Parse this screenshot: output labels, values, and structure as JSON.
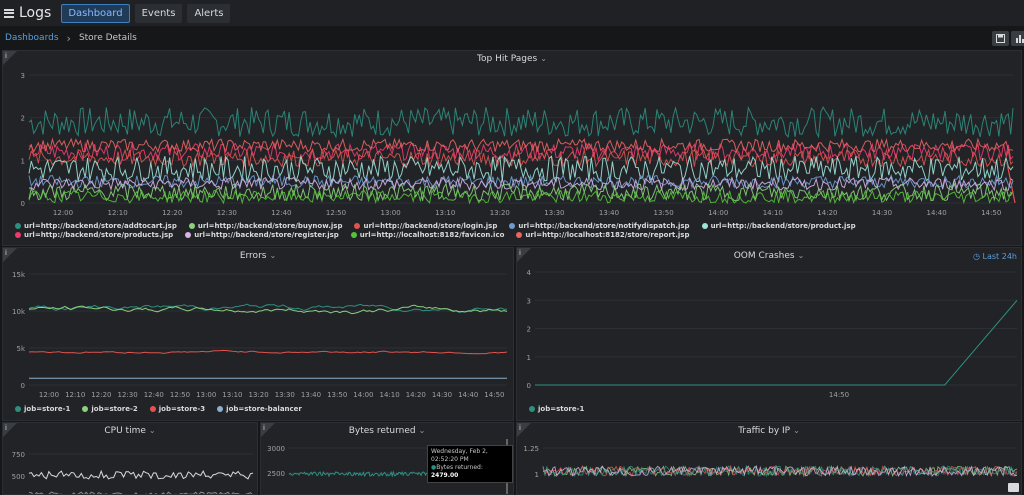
{
  "app": {
    "title": "Logs",
    "nav": [
      {
        "label": "Dashboard",
        "active": true
      },
      {
        "label": "Events",
        "active": false
      },
      {
        "label": "Alerts",
        "active": false
      }
    ]
  },
  "breadcrumb": {
    "root": "Dashboards",
    "current": "Store Details"
  },
  "icons": {
    "menu": "hamburger-icon",
    "save": "floppy-disk-icon",
    "chart": "bar-chart-icon",
    "panel_info": "info-icon",
    "clock": "clock-icon"
  },
  "colors": {
    "teal": "#2e8f80",
    "green": "#8cd17d",
    "red": "#e0534e",
    "blue": "#6e9cd1",
    "light_teal": "#9ee3d8",
    "pink": "#f03a6e",
    "lavender": "#d6b3e6",
    "lime": "#56c23a",
    "salmon": "#ea6460",
    "store_balancer": "#8ab0cf"
  },
  "panels": {
    "top_hit": {
      "title": "Top Hit Pages",
      "chart_data": {
        "type": "line",
        "x_ticks": [
          "12:00",
          "12:10",
          "12:20",
          "12:30",
          "12:40",
          "12:50",
          "13:00",
          "13:10",
          "13:20",
          "13:30",
          "13:40",
          "13:50",
          "14:00",
          "14:10",
          "14:20",
          "14:30",
          "14:40",
          "14:50"
        ],
        "y_ticks": [
          "0",
          "1",
          "2",
          "3"
        ],
        "ylim": [
          0,
          3
        ],
        "series": [
          {
            "name": "url=http://backend/store/addtocart.jsp",
            "color": "#2e8f80",
            "mean": 1.9,
            "amp": 0.35
          },
          {
            "name": "url=http://backend/store/buynow.jsp",
            "color": "#8cd17d",
            "mean": 0.25,
            "amp": 0.2
          },
          {
            "name": "url=http://backend/store/login.jsp",
            "color": "#e0534e",
            "mean": 1.05,
            "amp": 0.2
          },
          {
            "name": "url=http://backend/store/notifydispatch.jsp",
            "color": "#6e9cd1",
            "mean": 0.5,
            "amp": 0.15
          },
          {
            "name": "url=http://backend/store/product.jsp",
            "color": "#9ee3d8",
            "mean": 0.8,
            "amp": 0.3
          },
          {
            "name": "url=http://backend/store/products.jsp",
            "color": "#f03a6e",
            "mean": 1.2,
            "amp": 0.2
          },
          {
            "name": "url=http://backend/store/register.jsp",
            "color": "#d6b3e6",
            "mean": 0.45,
            "amp": 0.15
          },
          {
            "name": "url=http://localhost:8182/favicon.ico",
            "color": "#56c23a",
            "mean": 0.15,
            "amp": 0.15
          },
          {
            "name": "url=http://localhost:8182/store/report.jsp",
            "color": "#ea6460",
            "mean": 1.35,
            "amp": 0.15
          }
        ]
      }
    },
    "errors": {
      "title": "Errors",
      "chart_data": {
        "type": "line",
        "x_ticks": [
          "12:00",
          "12:10",
          "12:20",
          "12:30",
          "12:40",
          "12:50",
          "13:00",
          "13:10",
          "13:20",
          "13:30",
          "13:40",
          "13:50",
          "14:00",
          "14:10",
          "14:20",
          "14:30",
          "14:40",
          "14:50"
        ],
        "y_ticks": [
          "0",
          "5k",
          "10k",
          "15k"
        ],
        "ylim": [
          0,
          15000
        ],
        "series": [
          {
            "name": "job=store-1",
            "color": "#2e8f80",
            "mean": 10500,
            "amp": 1200
          },
          {
            "name": "job=store-2",
            "color": "#8cd17d",
            "mean": 10200,
            "amp": 1200
          },
          {
            "name": "job=store-3",
            "color": "#e0534e",
            "mean": 4500,
            "amp": 500
          },
          {
            "name": "job=store-balancer",
            "color": "#8ab0cf",
            "mean": 900,
            "amp": 0
          }
        ]
      }
    },
    "oom": {
      "title": "OOM Crashes",
      "time_range": "Last 24h",
      "chart_data": {
        "type": "line",
        "x_ticks": [
          "14:50"
        ],
        "y_ticks": [
          "0",
          "1",
          "2",
          "3",
          "4"
        ],
        "ylim": [
          0,
          4
        ],
        "series": [
          {
            "name": "job=store-1",
            "color": "#2e8f80",
            "points": [
              [
                0,
                0
              ],
              [
                0.85,
                0
              ],
              [
                1.0,
                3
              ]
            ]
          }
        ]
      }
    },
    "cpu": {
      "title": "CPU time",
      "chart_data": {
        "type": "line",
        "y_ticks": [
          "500",
          "750"
        ],
        "series": [
          {
            "name": "",
            "color": "#d8d9da"
          }
        ]
      }
    },
    "bytes": {
      "title": "Bytes returned",
      "tooltip": {
        "time": "Wednesday, Feb 2, 02:52:20 PM",
        "label": "Bytes returned:",
        "value": "2479.00"
      },
      "chart_data": {
        "type": "line",
        "y_ticks": [
          "2500",
          "3000"
        ],
        "series": [
          {
            "name": "",
            "color": "#2e8f80"
          }
        ]
      }
    },
    "traffic": {
      "title": "Traffic by IP",
      "chart_data": {
        "type": "line",
        "y_ticks": [
          "1",
          "1.25"
        ]
      }
    }
  }
}
